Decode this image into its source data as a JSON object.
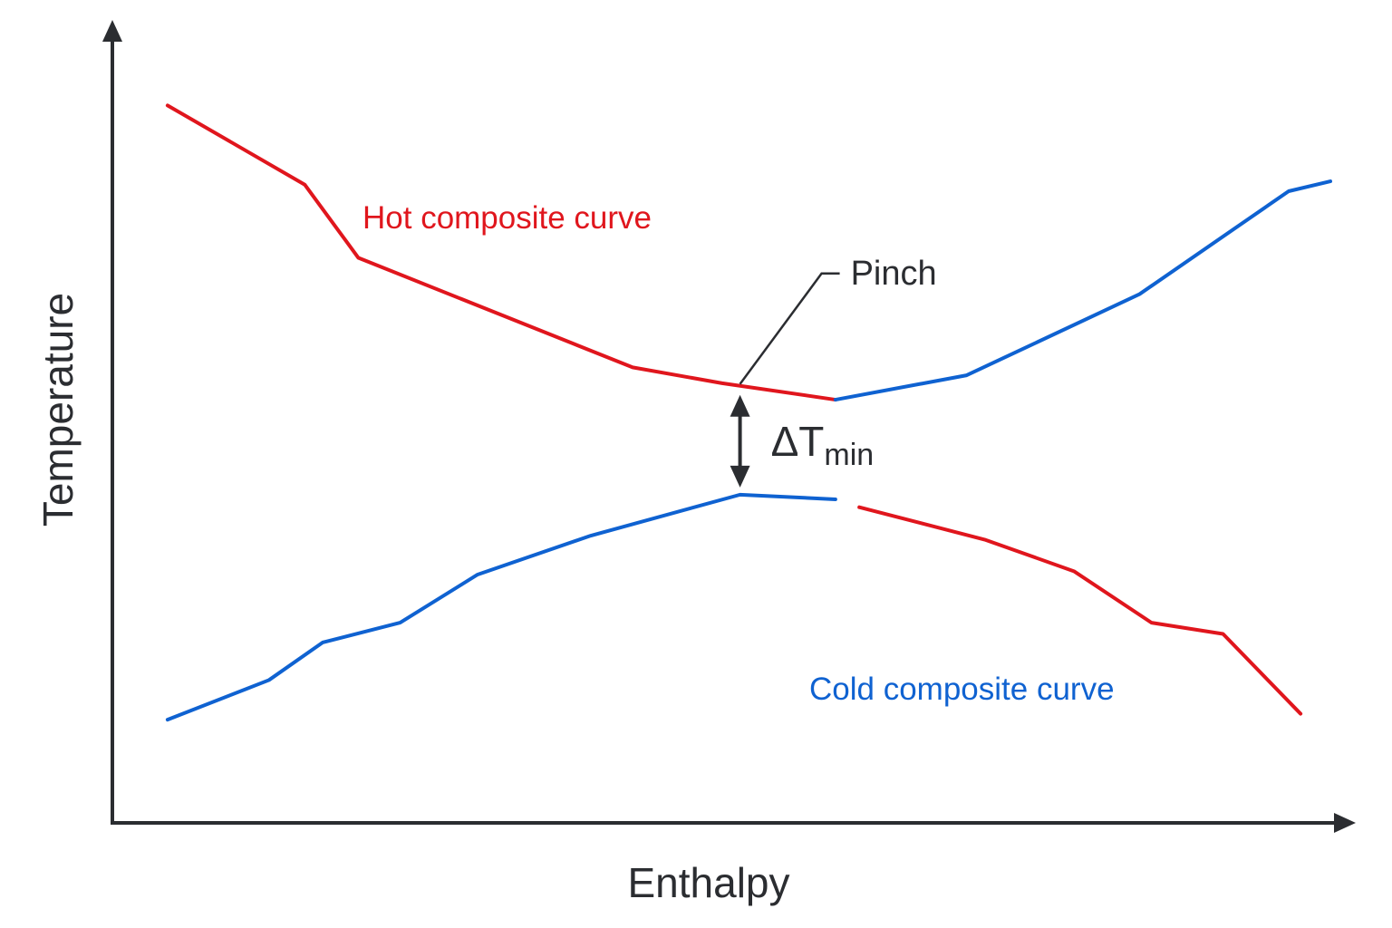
{
  "chart_data": {
    "type": "line",
    "title": "",
    "xlabel": "Enthalpy",
    "ylabel": "Temperature",
    "xlim": [
      0,
      100
    ],
    "ylim": [
      0,
      100
    ],
    "grid": false,
    "legend": "none",
    "series": [
      {
        "name": "Hot composite curve",
        "color": "#e0161d",
        "x": [
          2.5,
          14,
          18.5,
          41.5,
          49,
          58.5
        ],
        "y": [
          100.5,
          88.5,
          77.4,
          60.8,
          58.4,
          55.9
        ]
      },
      {
        "name": "Hot composite curve",
        "color": "#e0161d",
        "x": [
          60.5,
          71,
          78.5,
          85,
          91,
          97.5
        ],
        "y": [
          39.6,
          34.7,
          29.9,
          22.1,
          20.4,
          8.3
        ]
      },
      {
        "name": "Cold composite curve",
        "color": "#0f62d1",
        "x": [
          2.5,
          11,
          15.5,
          22,
          28.5,
          38,
          50.5,
          58.5
        ],
        "y": [
          7.4,
          13.4,
          19.1,
          22.1,
          29.4,
          35.3,
          41.5,
          40.8
        ]
      },
      {
        "name": "Cold composite curve",
        "color": "#0f62d1",
        "x": [
          58.5,
          69.5,
          84,
          96.5,
          100
        ],
        "y": [
          55.9,
          59.6,
          71.9,
          87.5,
          89
        ]
      }
    ],
    "annotations": {
      "pinch": "Pinch",
      "delta_t": "ΔT",
      "delta_t_sub": "min",
      "pinch_x": 50.5,
      "pinch_y_hot": 58.0,
      "pinch_y_cold": 41.5
    },
    "colors": {
      "axis": "#2b2d31",
      "hot": "#e0161d",
      "cold": "#0f62d1"
    }
  }
}
